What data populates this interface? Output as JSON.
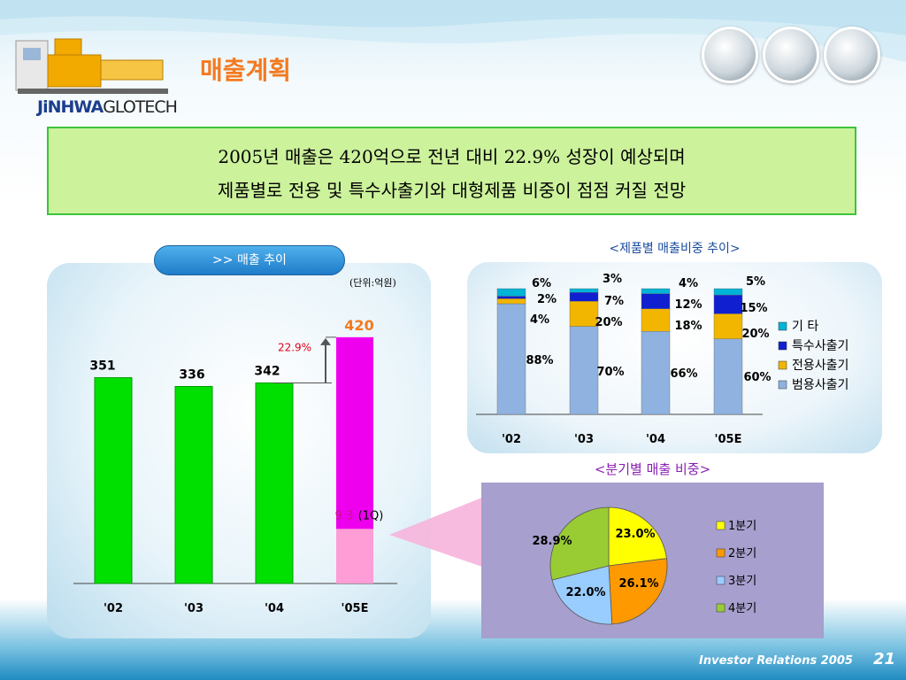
{
  "page": {
    "title": "매출계획",
    "logo_brand": "JiNHWA",
    "logo_rest": "GLOTECH",
    "footer": "Investor Relations 2005",
    "page_number": "21"
  },
  "summary": {
    "line1": "2005년 매출은 420억으로 전년 대비 22.9% 성장이 예상되며",
    "line2": "제품별로 전용 및 특수사출기와 대형제품 비중이 점점 커질 전망"
  },
  "sales_trend": {
    "pill_label": ">> 매출 추이",
    "unit": "(단위:억원)",
    "growth_label": "22.9%",
    "q1_label": "9 3",
    "q1_suffix": "(1Q)"
  },
  "product_mix": {
    "title": "<제품별 매출비중 추이>"
  },
  "quarterly": {
    "title": "<분기별 매출 비중>"
  },
  "colors": {
    "green_bar": "#00e000",
    "magenta_bar": "#ee00ee",
    "pink_bar": "#ff9dd6",
    "orange_value": "#f47a1f",
    "red_growth": "#e0001a",
    "general": "#8fb2e0",
    "dedicated": "#f2b600",
    "special": "#1020d0",
    "other": "#00b4d8",
    "q1": "#ffff00",
    "q2": "#ff9900",
    "q3": "#99ccff",
    "q4": "#99cc33"
  },
  "chart_data": [
    {
      "type": "bar",
      "categories": [
        "'02",
        "'03",
        "'04",
        "'05E"
      ],
      "values": [
        351,
        336,
        342,
        420
      ],
      "q1_value_05E": 93,
      "value_labels": [
        "351",
        "336",
        "342",
        "420"
      ],
      "ylim": [
        0,
        450
      ]
    },
    {
      "type": "bar",
      "stacked": true,
      "categories": [
        "'02",
        "'03",
        "'04",
        "'05E"
      ],
      "ylim": [
        0,
        100
      ],
      "legend_position": "right",
      "series": [
        {
          "name": "범용사출기",
          "values": [
            88,
            70,
            66,
            60
          ],
          "labels": [
            "88%",
            "70%",
            "66%",
            "60%"
          ]
        },
        {
          "name": "전용사출기",
          "values": [
            4,
            20,
            18,
            20
          ],
          "labels": [
            "4%",
            "20%",
            "18%",
            "20%"
          ]
        },
        {
          "name": "특수사출기",
          "values": [
            2,
            7,
            12,
            15
          ],
          "labels": [
            "2%",
            "7%",
            "12%",
            "15%"
          ]
        },
        {
          "name": "기 타",
          "values": [
            6,
            3,
            4,
            5
          ],
          "labels": [
            "6%",
            "3%",
            "4%",
            "5%"
          ]
        }
      ]
    },
    {
      "type": "pie",
      "legend_position": "right",
      "slices": [
        {
          "name": "1분기",
          "value": 23.0,
          "label": "23.0%"
        },
        {
          "name": "2분기",
          "value": 26.1,
          "label": "26.1%"
        },
        {
          "name": "3분기",
          "value": 22.0,
          "label": "22.0%"
        },
        {
          "name": "4분기",
          "value": 28.9,
          "label": "28.9%"
        }
      ]
    }
  ]
}
